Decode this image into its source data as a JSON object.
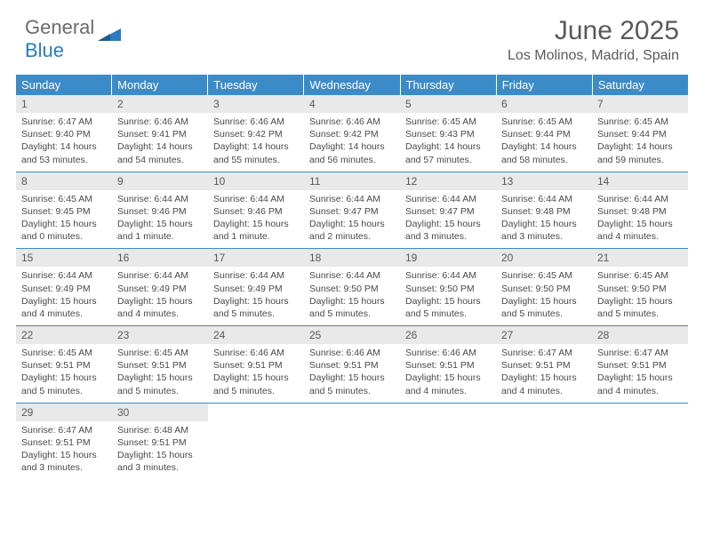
{
  "brand": {
    "word1": "General",
    "word2": "Blue"
  },
  "title": "June 2025",
  "location": "Los Molinos, Madrid, Spain",
  "colors": {
    "header_bg": "#3b8bc8",
    "header_fg": "#ffffff",
    "daynum_bg": "#e9e9e9",
    "rule": "#3b8bc8",
    "text": "#4a4a4a",
    "brand_gray": "#6b6b6b",
    "brand_blue": "#2a7bbf"
  },
  "dows": [
    "Sunday",
    "Monday",
    "Tuesday",
    "Wednesday",
    "Thursday",
    "Friday",
    "Saturday"
  ],
  "weeks": [
    [
      {
        "n": "1",
        "sr": "Sunrise: 6:47 AM",
        "ss": "Sunset: 9:40 PM",
        "d1": "Daylight: 14 hours",
        "d2": "and 53 minutes."
      },
      {
        "n": "2",
        "sr": "Sunrise: 6:46 AM",
        "ss": "Sunset: 9:41 PM",
        "d1": "Daylight: 14 hours",
        "d2": "and 54 minutes."
      },
      {
        "n": "3",
        "sr": "Sunrise: 6:46 AM",
        "ss": "Sunset: 9:42 PM",
        "d1": "Daylight: 14 hours",
        "d2": "and 55 minutes."
      },
      {
        "n": "4",
        "sr": "Sunrise: 6:46 AM",
        "ss": "Sunset: 9:42 PM",
        "d1": "Daylight: 14 hours",
        "d2": "and 56 minutes."
      },
      {
        "n": "5",
        "sr": "Sunrise: 6:45 AM",
        "ss": "Sunset: 9:43 PM",
        "d1": "Daylight: 14 hours",
        "d2": "and 57 minutes."
      },
      {
        "n": "6",
        "sr": "Sunrise: 6:45 AM",
        "ss": "Sunset: 9:44 PM",
        "d1": "Daylight: 14 hours",
        "d2": "and 58 minutes."
      },
      {
        "n": "7",
        "sr": "Sunrise: 6:45 AM",
        "ss": "Sunset: 9:44 PM",
        "d1": "Daylight: 14 hours",
        "d2": "and 59 minutes."
      }
    ],
    [
      {
        "n": "8",
        "sr": "Sunrise: 6:45 AM",
        "ss": "Sunset: 9:45 PM",
        "d1": "Daylight: 15 hours",
        "d2": "and 0 minutes."
      },
      {
        "n": "9",
        "sr": "Sunrise: 6:44 AM",
        "ss": "Sunset: 9:46 PM",
        "d1": "Daylight: 15 hours",
        "d2": "and 1 minute."
      },
      {
        "n": "10",
        "sr": "Sunrise: 6:44 AM",
        "ss": "Sunset: 9:46 PM",
        "d1": "Daylight: 15 hours",
        "d2": "and 1 minute."
      },
      {
        "n": "11",
        "sr": "Sunrise: 6:44 AM",
        "ss": "Sunset: 9:47 PM",
        "d1": "Daylight: 15 hours",
        "d2": "and 2 minutes."
      },
      {
        "n": "12",
        "sr": "Sunrise: 6:44 AM",
        "ss": "Sunset: 9:47 PM",
        "d1": "Daylight: 15 hours",
        "d2": "and 3 minutes."
      },
      {
        "n": "13",
        "sr": "Sunrise: 6:44 AM",
        "ss": "Sunset: 9:48 PM",
        "d1": "Daylight: 15 hours",
        "d2": "and 3 minutes."
      },
      {
        "n": "14",
        "sr": "Sunrise: 6:44 AM",
        "ss": "Sunset: 9:48 PM",
        "d1": "Daylight: 15 hours",
        "d2": "and 4 minutes."
      }
    ],
    [
      {
        "n": "15",
        "sr": "Sunrise: 6:44 AM",
        "ss": "Sunset: 9:49 PM",
        "d1": "Daylight: 15 hours",
        "d2": "and 4 minutes."
      },
      {
        "n": "16",
        "sr": "Sunrise: 6:44 AM",
        "ss": "Sunset: 9:49 PM",
        "d1": "Daylight: 15 hours",
        "d2": "and 4 minutes."
      },
      {
        "n": "17",
        "sr": "Sunrise: 6:44 AM",
        "ss": "Sunset: 9:49 PM",
        "d1": "Daylight: 15 hours",
        "d2": "and 5 minutes."
      },
      {
        "n": "18",
        "sr": "Sunrise: 6:44 AM",
        "ss": "Sunset: 9:50 PM",
        "d1": "Daylight: 15 hours",
        "d2": "and 5 minutes."
      },
      {
        "n": "19",
        "sr": "Sunrise: 6:44 AM",
        "ss": "Sunset: 9:50 PM",
        "d1": "Daylight: 15 hours",
        "d2": "and 5 minutes."
      },
      {
        "n": "20",
        "sr": "Sunrise: 6:45 AM",
        "ss": "Sunset: 9:50 PM",
        "d1": "Daylight: 15 hours",
        "d2": "and 5 minutes."
      },
      {
        "n": "21",
        "sr": "Sunrise: 6:45 AM",
        "ss": "Sunset: 9:50 PM",
        "d1": "Daylight: 15 hours",
        "d2": "and 5 minutes."
      }
    ],
    [
      {
        "n": "22",
        "sr": "Sunrise: 6:45 AM",
        "ss": "Sunset: 9:51 PM",
        "d1": "Daylight: 15 hours",
        "d2": "and 5 minutes."
      },
      {
        "n": "23",
        "sr": "Sunrise: 6:45 AM",
        "ss": "Sunset: 9:51 PM",
        "d1": "Daylight: 15 hours",
        "d2": "and 5 minutes."
      },
      {
        "n": "24",
        "sr": "Sunrise: 6:46 AM",
        "ss": "Sunset: 9:51 PM",
        "d1": "Daylight: 15 hours",
        "d2": "and 5 minutes."
      },
      {
        "n": "25",
        "sr": "Sunrise: 6:46 AM",
        "ss": "Sunset: 9:51 PM",
        "d1": "Daylight: 15 hours",
        "d2": "and 5 minutes."
      },
      {
        "n": "26",
        "sr": "Sunrise: 6:46 AM",
        "ss": "Sunset: 9:51 PM",
        "d1": "Daylight: 15 hours",
        "d2": "and 4 minutes."
      },
      {
        "n": "27",
        "sr": "Sunrise: 6:47 AM",
        "ss": "Sunset: 9:51 PM",
        "d1": "Daylight: 15 hours",
        "d2": "and 4 minutes."
      },
      {
        "n": "28",
        "sr": "Sunrise: 6:47 AM",
        "ss": "Sunset: 9:51 PM",
        "d1": "Daylight: 15 hours",
        "d2": "and 4 minutes."
      }
    ],
    [
      {
        "n": "29",
        "sr": "Sunrise: 6:47 AM",
        "ss": "Sunset: 9:51 PM",
        "d1": "Daylight: 15 hours",
        "d2": "and 3 minutes."
      },
      {
        "n": "30",
        "sr": "Sunrise: 6:48 AM",
        "ss": "Sunset: 9:51 PM",
        "d1": "Daylight: 15 hours",
        "d2": "and 3 minutes."
      },
      {
        "empty": true
      },
      {
        "empty": true
      },
      {
        "empty": true
      },
      {
        "empty": true
      },
      {
        "empty": true
      }
    ]
  ]
}
